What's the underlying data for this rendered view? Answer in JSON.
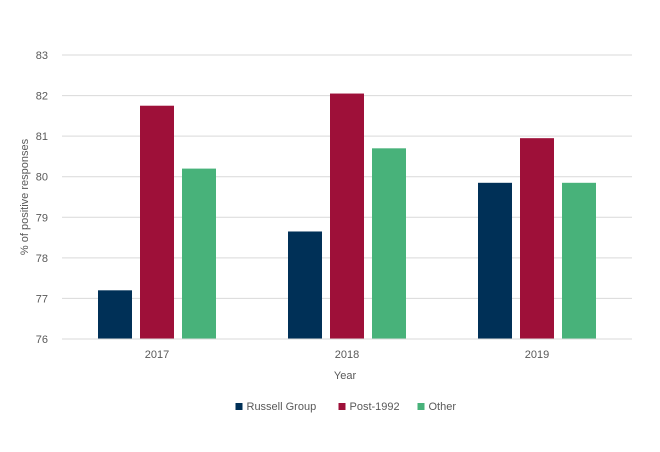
{
  "chart_data": {
    "type": "bar",
    "title": "",
    "xlabel": "Year",
    "ylabel": "% of positive responses",
    "categories": [
      "2017",
      "2018",
      "2019"
    ],
    "ylim": [
      76,
      83
    ],
    "yticks": [
      76,
      77,
      78,
      79,
      80,
      81,
      82,
      83
    ],
    "grid": true,
    "legend_position": "bottom",
    "series": [
      {
        "name": "Russell Group",
        "color": "#003057",
        "values": [
          77.2,
          78.65,
          79.85
        ]
      },
      {
        "name": "Post-1992",
        "color": "#9e1039",
        "values": [
          81.75,
          82.05,
          80.95
        ]
      },
      {
        "name": "Other",
        "color": "#48b27a",
        "values": [
          80.2,
          80.7,
          79.85
        ]
      }
    ]
  }
}
